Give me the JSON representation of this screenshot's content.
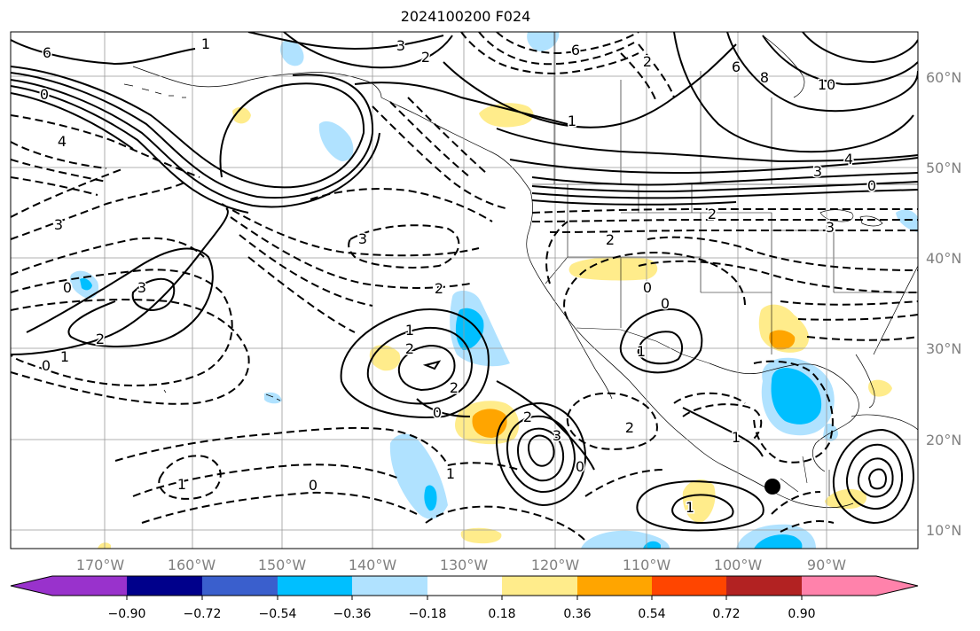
{
  "title": "2024100200 F024",
  "map": {
    "lat_labels": [
      "60°N",
      "50°N",
      "40°N",
      "30°N",
      "20°N",
      "10°N"
    ],
    "lon_labels": [
      "170°W",
      "160°W",
      "150°W",
      "140°W",
      "130°W",
      "120°W",
      "110°W",
      "100°W",
      "90°W"
    ],
    "contour_labels": [
      "6",
      "1",
      "3",
      "2",
      "0",
      "4",
      "3",
      "0",
      "6",
      "2",
      "1",
      "10",
      "8",
      "6",
      "4",
      "3",
      "2",
      "0",
      "3",
      "3",
      "3",
      "2",
      "2",
      "0",
      "1",
      "2",
      "2",
      "2",
      "1",
      "0",
      "2",
      "0",
      "0",
      "1",
      "3",
      "2",
      "1",
      "0",
      "0",
      "1",
      "1",
      "1"
    ],
    "colors": {
      "contour": "#000000",
      "grid": "#999999",
      "tick_label": "#808080",
      "marker": "#000000"
    }
  },
  "colorbar": {
    "ticks": [
      "−0.90",
      "−0.72",
      "−0.54",
      "−0.36",
      "−0.18",
      "0.18",
      "0.36",
      "0.54",
      "0.72",
      "0.90"
    ],
    "colors": [
      "#9932cc",
      "#00008b",
      "#3a5fcd",
      "#00bfff",
      "#b0e2ff",
      "#ffffff",
      "#ffec8b",
      "#ffa500",
      "#ff4500",
      "#b22222",
      "#ff82ab"
    ]
  }
}
